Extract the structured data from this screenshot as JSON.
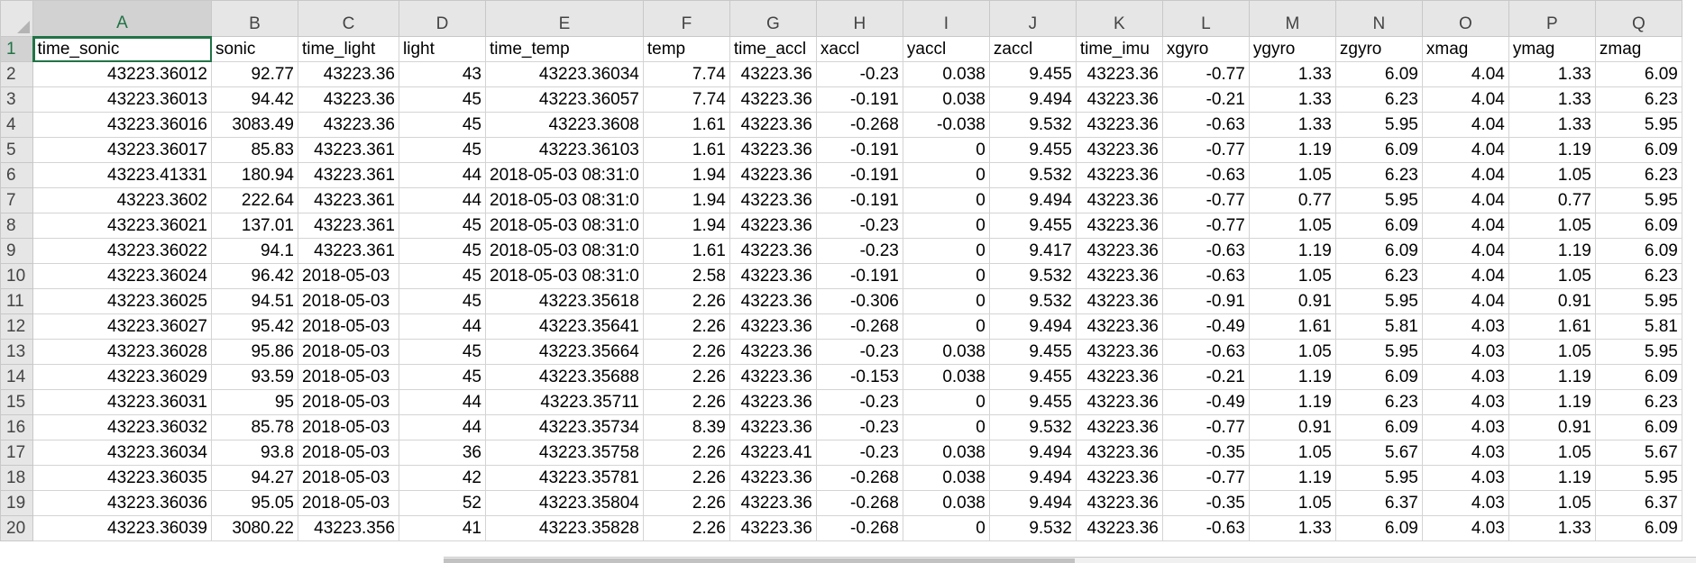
{
  "sheet": {
    "columns": [
      "A",
      "B",
      "C",
      "D",
      "E",
      "F",
      "G",
      "H",
      "I",
      "J",
      "K",
      "L",
      "M",
      "N",
      "O",
      "P",
      "Q"
    ],
    "selected_cell": "A1",
    "rows": [
      {
        "n": "1",
        "cells": [
          "time_sonic",
          "sonic",
          "time_light",
          "light",
          "time_temp",
          "temp",
          "time_accl",
          "xaccl",
          "yaccl",
          "zaccl",
          "time_imu",
          "xgyro",
          "ygyro",
          "zgyro",
          "xmag",
          "ymag",
          "zmag"
        ]
      },
      {
        "n": "2",
        "cells": [
          "43223.36012",
          "92.77",
          "43223.36",
          "43",
          "43223.36034",
          "7.74",
          "43223.36",
          "-0.23",
          "0.038",
          "9.455",
          "43223.36",
          "-0.77",
          "1.33",
          "6.09",
          "4.04",
          "1.33",
          "6.09"
        ]
      },
      {
        "n": "3",
        "cells": [
          "43223.36013",
          "94.42",
          "43223.36",
          "45",
          "43223.36057",
          "7.74",
          "43223.36",
          "-0.191",
          "0.038",
          "9.494",
          "43223.36",
          "-0.21",
          "1.33",
          "6.23",
          "4.04",
          "1.33",
          "6.23"
        ]
      },
      {
        "n": "4",
        "cells": [
          "43223.36016",
          "3083.49",
          "43223.36",
          "45",
          "43223.3608",
          "1.61",
          "43223.36",
          "-0.268",
          "-0.038",
          "9.532",
          "43223.36",
          "-0.63",
          "1.33",
          "5.95",
          "4.04",
          "1.33",
          "5.95"
        ]
      },
      {
        "n": "5",
        "cells": [
          "43223.36017",
          "85.83",
          "43223.361",
          "45",
          "43223.36103",
          "1.61",
          "43223.36",
          "-0.191",
          "0",
          "9.455",
          "43223.36",
          "-0.77",
          "1.19",
          "6.09",
          "4.04",
          "1.19",
          "6.09"
        ]
      },
      {
        "n": "6",
        "cells": [
          "43223.41331",
          "180.94",
          "43223.361",
          "44",
          "2018-05-03 08:31:0",
          "1.94",
          "43223.36",
          "-0.191",
          "0",
          "9.532",
          "43223.36",
          "-0.63",
          "1.05",
          "6.23",
          "4.04",
          "1.05",
          "6.23"
        ]
      },
      {
        "n": "7",
        "cells": [
          "43223.3602",
          "222.64",
          "43223.361",
          "44",
          "2018-05-03 08:31:0",
          "1.94",
          "43223.36",
          "-0.191",
          "0",
          "9.494",
          "43223.36",
          "-0.77",
          "0.77",
          "5.95",
          "4.04",
          "0.77",
          "5.95"
        ]
      },
      {
        "n": "8",
        "cells": [
          "43223.36021",
          "137.01",
          "43223.361",
          "45",
          "2018-05-03 08:31:0",
          "1.94",
          "43223.36",
          "-0.23",
          "0",
          "9.455",
          "43223.36",
          "-0.77",
          "1.05",
          "6.09",
          "4.04",
          "1.05",
          "6.09"
        ]
      },
      {
        "n": "9",
        "cells": [
          "43223.36022",
          "94.1",
          "43223.361",
          "45",
          "2018-05-03 08:31:0",
          "1.61",
          "43223.36",
          "-0.23",
          "0",
          "9.417",
          "43223.36",
          "-0.63",
          "1.19",
          "6.09",
          "4.04",
          "1.19",
          "6.09"
        ]
      },
      {
        "n": "10",
        "cells": [
          "43223.36024",
          "96.42",
          "2018-05-03",
          "45",
          "2018-05-03 08:31:0",
          "2.58",
          "43223.36",
          "-0.191",
          "0",
          "9.532",
          "43223.36",
          "-0.63",
          "1.05",
          "6.23",
          "4.04",
          "1.05",
          "6.23"
        ]
      },
      {
        "n": "11",
        "cells": [
          "43223.36025",
          "94.51",
          "2018-05-03",
          "45",
          "43223.35618",
          "2.26",
          "43223.36",
          "-0.306",
          "0",
          "9.532",
          "43223.36",
          "-0.91",
          "0.91",
          "5.95",
          "4.04",
          "0.91",
          "5.95"
        ]
      },
      {
        "n": "12",
        "cells": [
          "43223.36027",
          "95.42",
          "2018-05-03",
          "44",
          "43223.35641",
          "2.26",
          "43223.36",
          "-0.268",
          "0",
          "9.494",
          "43223.36",
          "-0.49",
          "1.61",
          "5.81",
          "4.03",
          "1.61",
          "5.81"
        ]
      },
      {
        "n": "13",
        "cells": [
          "43223.36028",
          "95.86",
          "2018-05-03",
          "45",
          "43223.35664",
          "2.26",
          "43223.36",
          "-0.23",
          "0.038",
          "9.455",
          "43223.36",
          "-0.63",
          "1.05",
          "5.95",
          "4.03",
          "1.05",
          "5.95"
        ]
      },
      {
        "n": "14",
        "cells": [
          "43223.36029",
          "93.59",
          "2018-05-03",
          "45",
          "43223.35688",
          "2.26",
          "43223.36",
          "-0.153",
          "0.038",
          "9.455",
          "43223.36",
          "-0.21",
          "1.19",
          "6.09",
          "4.03",
          "1.19",
          "6.09"
        ]
      },
      {
        "n": "15",
        "cells": [
          "43223.36031",
          "95",
          "2018-05-03",
          "44",
          "43223.35711",
          "2.26",
          "43223.36",
          "-0.23",
          "0",
          "9.455",
          "43223.36",
          "-0.49",
          "1.19",
          "6.23",
          "4.03",
          "1.19",
          "6.23"
        ]
      },
      {
        "n": "16",
        "cells": [
          "43223.36032",
          "85.78",
          "2018-05-03",
          "44",
          "43223.35734",
          "8.39",
          "43223.36",
          "-0.23",
          "0",
          "9.532",
          "43223.36",
          "-0.77",
          "0.91",
          "6.09",
          "4.03",
          "0.91",
          "6.09"
        ]
      },
      {
        "n": "17",
        "cells": [
          "43223.36034",
          "93.8",
          "2018-05-03",
          "36",
          "43223.35758",
          "2.26",
          "43223.41",
          "-0.23",
          "0.038",
          "9.494",
          "43223.36",
          "-0.35",
          "1.05",
          "5.67",
          "4.03",
          "1.05",
          "5.67"
        ]
      },
      {
        "n": "18",
        "cells": [
          "43223.36035",
          "94.27",
          "2018-05-03",
          "42",
          "43223.35781",
          "2.26",
          "43223.36",
          "-0.268",
          "0.038",
          "9.494",
          "43223.36",
          "-0.77",
          "1.19",
          "5.95",
          "4.03",
          "1.19",
          "5.95"
        ]
      },
      {
        "n": "19",
        "cells": [
          "43223.36036",
          "95.05",
          "2018-05-03",
          "52",
          "43223.35804",
          "2.26",
          "43223.36",
          "-0.268",
          "0.038",
          "9.494",
          "43223.36",
          "-0.35",
          "1.05",
          "6.37",
          "4.03",
          "1.05",
          "6.37"
        ]
      },
      {
        "n": "20",
        "cells": [
          "43223.36039",
          "3080.22",
          "43223.356",
          "41",
          "43223.35828",
          "2.26",
          "43223.36",
          "-0.268",
          "0",
          "9.532",
          "43223.36",
          "-0.63",
          "1.33",
          "6.09",
          "4.03",
          "1.33",
          "6.09"
        ]
      }
    ]
  }
}
